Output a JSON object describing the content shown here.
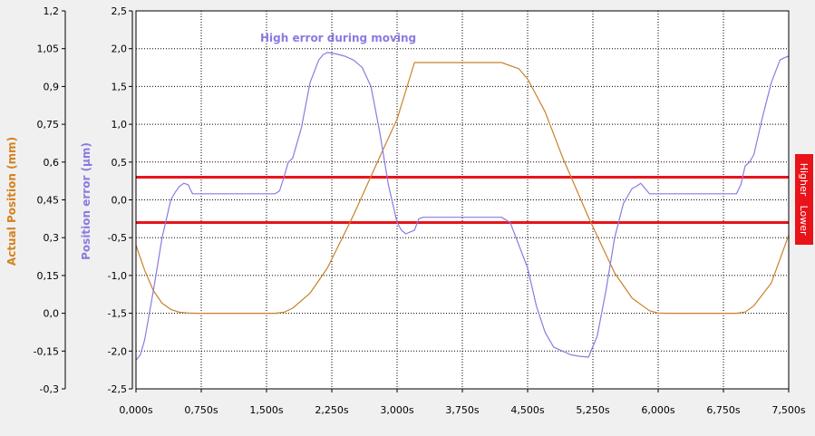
{
  "chart_data": {
    "type": "line",
    "title": "",
    "annotation": "High error during moving",
    "x_axis": {
      "label": "",
      "range": [
        0,
        7.5
      ],
      "ticks": [
        0,
        0.75,
        1.5,
        2.25,
        3.0,
        3.75,
        4.5,
        5.25,
        6.0,
        6.75,
        7.5
      ],
      "tick_labels": [
        "0,000s",
        "0,750s",
        "1,500s",
        "2,250s",
        "3,000s",
        "3,750s",
        "4,500s",
        "5,250s",
        "6,000s",
        "6,750s",
        "7,500s"
      ]
    },
    "y_axis_left_outer": {
      "label": "Actual Position (mm)",
      "color": "#d4821e",
      "range": [
        -0.3,
        1.2
      ],
      "tick_labels": [
        "1,2",
        "1,05",
        "0,9",
        "0,75",
        "0,6",
        "0,45",
        "0,3",
        "0,15",
        "0,0",
        "-0,15",
        "-0,3"
      ]
    },
    "y_axis_left_inner": {
      "label": "Position error (µm)",
      "color": "#8a7be0",
      "range": [
        -2.5,
        2.5
      ],
      "tick_labels": [
        "2,5",
        "2,0",
        "1,5",
        "1,0",
        "0,5",
        "0,0",
        "-0,5",
        "-1,0",
        "-1,5",
        "-2,0",
        "-2,5"
      ]
    },
    "limits": {
      "higher_label": "Higher",
      "lower_label": "Lower",
      "higher_value": 0.3,
      "lower_value": -0.3,
      "color": "#e8141a"
    },
    "grid": true,
    "series": [
      {
        "name": "Actual Position",
        "axis": "left_outer",
        "color": "#c8822c",
        "x": [
          0,
          0.1,
          0.2,
          0.3,
          0.4,
          0.5,
          0.6,
          0.7,
          1.6,
          1.7,
          1.8,
          2.0,
          2.2,
          2.5,
          2.8,
          3.0,
          3.2,
          4.2,
          4.4,
          4.5,
          4.7,
          4.9,
          5.2,
          5.5,
          5.7,
          5.9,
          6.0,
          6.1,
          6.9,
          7.0,
          7.1,
          7.3,
          7.5
        ],
        "y": [
          0.27,
          0.17,
          0.09,
          0.04,
          0.015,
          0.004,
          0.001,
          0.0,
          0.0,
          0.004,
          0.02,
          0.08,
          0.18,
          0.39,
          0.62,
          0.77,
          0.995,
          0.995,
          0.97,
          0.93,
          0.8,
          0.62,
          0.38,
          0.16,
          0.06,
          0.01,
          0.001,
          0.0,
          0.0,
          0.005,
          0.03,
          0.12,
          0.31
        ]
      },
      {
        "name": "Position error",
        "axis": "left_inner",
        "color": "#8a7be0",
        "x": [
          0,
          0.05,
          0.1,
          0.2,
          0.3,
          0.4,
          0.45,
          0.5,
          0.55,
          0.6,
          0.62,
          0.65,
          1.5,
          1.6,
          1.65,
          1.7,
          1.75,
          1.8,
          1.9,
          2.0,
          2.1,
          2.15,
          2.2,
          2.3,
          2.4,
          2.5,
          2.6,
          2.7,
          2.8,
          2.9,
          3.0,
          3.05,
          3.1,
          3.2,
          3.25,
          3.3,
          4.2,
          4.3,
          4.4,
          4.5,
          4.6,
          4.7,
          4.8,
          4.9,
          5.0,
          5.1,
          5.2,
          5.3,
          5.4,
          5.5,
          5.6,
          5.7,
          5.75,
          5.8,
          5.85,
          5.9,
          6.0,
          6.9,
          6.95,
          7.0,
          7.05,
          7.1,
          7.2,
          7.3,
          7.4,
          7.45,
          7.5
        ],
        "y": [
          -2.12,
          -2.05,
          -1.85,
          -1.2,
          -0.5,
          0.0,
          0.1,
          0.18,
          0.22,
          0.2,
          0.15,
          0.08,
          0.08,
          0.08,
          0.12,
          0.3,
          0.5,
          0.55,
          0.95,
          1.55,
          1.85,
          1.92,
          1.95,
          1.93,
          1.9,
          1.85,
          1.75,
          1.5,
          0.9,
          0.2,
          -0.3,
          -0.4,
          -0.45,
          -0.4,
          -0.25,
          -0.23,
          -0.23,
          -0.3,
          -0.6,
          -0.9,
          -1.4,
          -1.75,
          -1.95,
          -2.0,
          -2.05,
          -2.07,
          -2.08,
          -1.8,
          -1.2,
          -0.5,
          -0.05,
          0.15,
          0.18,
          0.22,
          0.15,
          0.08,
          0.08,
          0.08,
          0.2,
          0.45,
          0.5,
          0.6,
          1.1,
          1.55,
          1.85,
          1.88,
          1.9
        ]
      }
    ]
  }
}
